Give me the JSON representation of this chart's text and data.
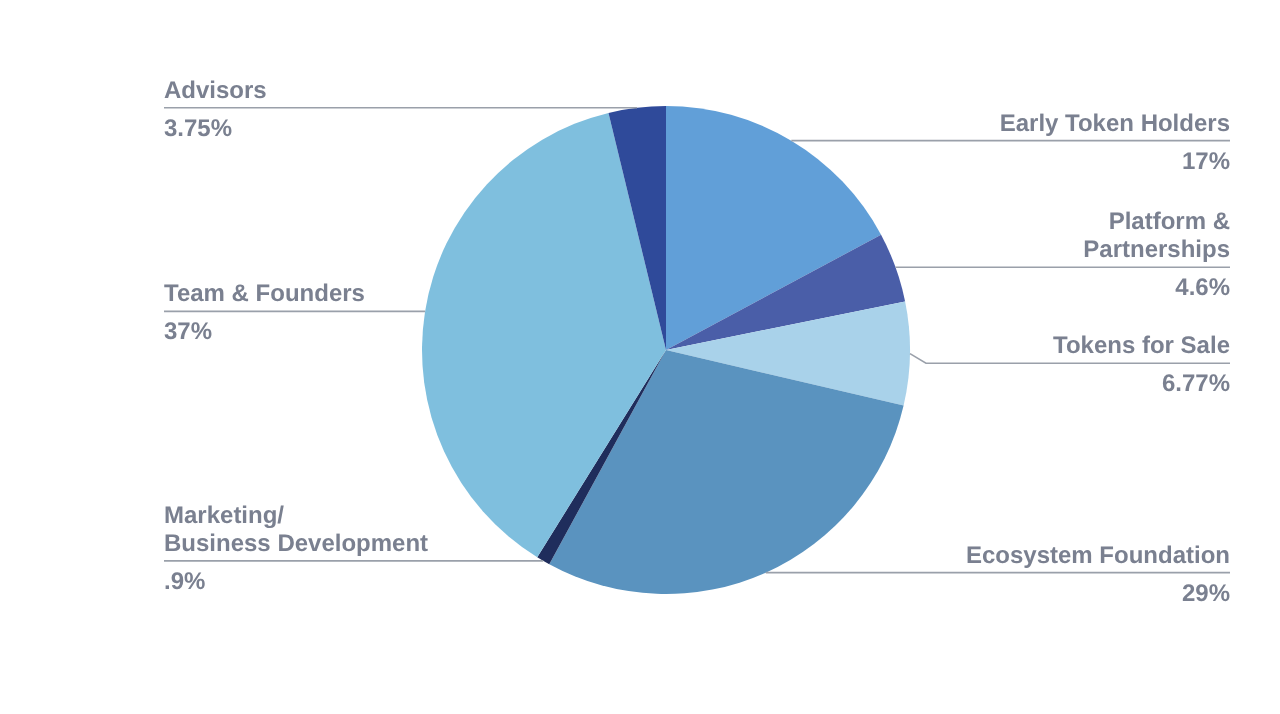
{
  "chart_data": {
    "type": "pie",
    "categories": [
      "Early Token Holders",
      "Platform &\nPartnerships",
      "Tokens for Sale",
      "Ecosystem Foundation",
      "Marketing/\nBusiness Development",
      "Team & Founders",
      "Advisors"
    ],
    "values": [
      17,
      4.6,
      6.77,
      29,
      0.9,
      37,
      3.75
    ],
    "value_labels": [
      "17%",
      "4.6%",
      "6.77%",
      "29%",
      ".9%",
      "37%",
      "3.75%"
    ],
    "colors": [
      "#619fd8",
      "#4a5ea8",
      "#a9d2ea",
      "#5a93bf",
      "#1f2d5c",
      "#7fbfde",
      "#2f4a9a"
    ]
  }
}
